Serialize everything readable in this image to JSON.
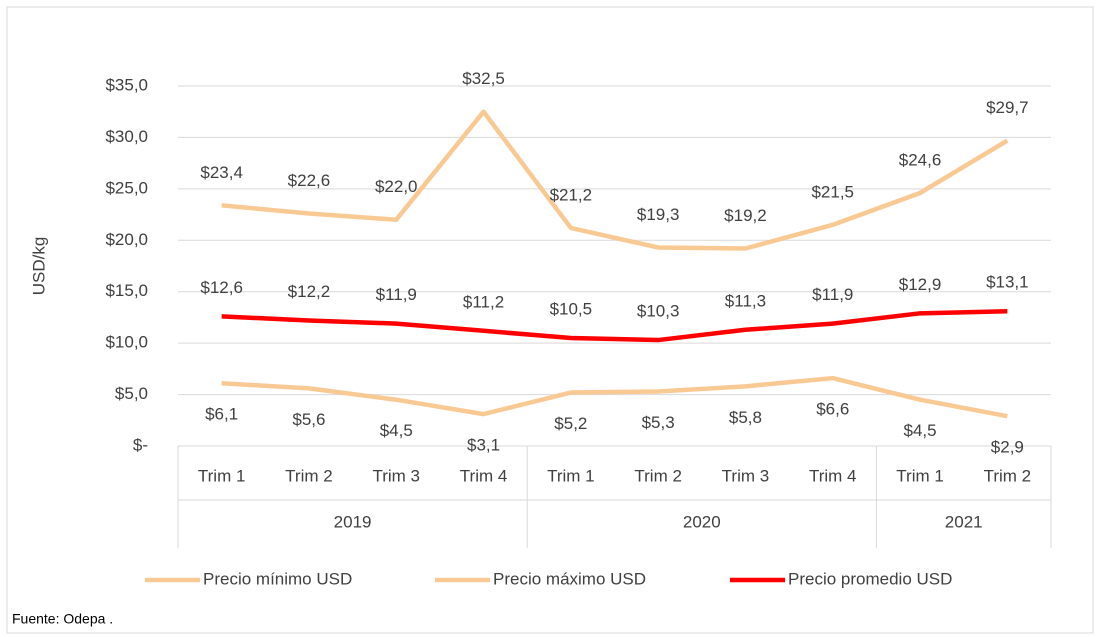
{
  "chart_data": {
    "type": "line",
    "y_label": "USD/kg",
    "source": "Fuente:  Odepa .",
    "category_groups": [
      {
        "name": "2019",
        "categories": [
          "Trim 1",
          "Trim 2",
          "Trim 3",
          "Trim 4"
        ]
      },
      {
        "name": "2020",
        "categories": [
          "Trim 1",
          "Trim 2",
          "Trim 3",
          "Trim 4"
        ]
      },
      {
        "name": "2021",
        "categories": [
          "Trim 1",
          "Trim 2"
        ]
      }
    ],
    "series": [
      {
        "name": "Precio mínimo USD",
        "color": "#f9c994",
        "values": [
          6.1,
          5.6,
          4.5,
          3.1,
          5.2,
          5.3,
          5.8,
          6.6,
          4.5,
          2.9
        ],
        "value_labels": [
          "$6,1",
          "$5,6",
          "$4,5",
          "$3,1",
          "$5,2",
          "$5,3",
          "$5,8",
          "$6,6",
          "$4,5",
          "$2,9"
        ]
      },
      {
        "name": "Precio máximo USD",
        "color": "#f9c994",
        "values": [
          23.4,
          22.6,
          22.0,
          32.5,
          21.2,
          19.3,
          19.2,
          21.5,
          24.6,
          29.7
        ],
        "value_labels": [
          "$23,4",
          "$22,6",
          "$22,0",
          "$32,5",
          "$21,2",
          "$19,3",
          "$19,2",
          "$21,5",
          "$24,6",
          "$29,7"
        ]
      },
      {
        "name": "Precio promedio USD",
        "color": "#ff0000",
        "values": [
          12.6,
          12.2,
          11.9,
          11.2,
          10.5,
          10.3,
          11.3,
          11.9,
          12.9,
          13.1
        ],
        "value_labels": [
          "$12,6",
          "$12,2",
          "$11,9",
          "$11,2",
          "$10,5",
          "$10,3",
          "$11,3",
          "$11,9",
          "$12,9",
          "$13,1"
        ]
      }
    ],
    "ylim": [
      0,
      35
    ],
    "yticks": [
      {
        "value": 0,
        "label": "$-"
      },
      {
        "value": 5,
        "label": "$5,0"
      },
      {
        "value": 10,
        "label": "$10,0"
      },
      {
        "value": 15,
        "label": "$15,0"
      },
      {
        "value": 20,
        "label": "$20,0"
      },
      {
        "value": 25,
        "label": "$25,0"
      },
      {
        "value": 30,
        "label": "$30,0"
      },
      {
        "value": 35,
        "label": "$35,0"
      }
    ],
    "grid": true,
    "legend": "bottom"
  }
}
